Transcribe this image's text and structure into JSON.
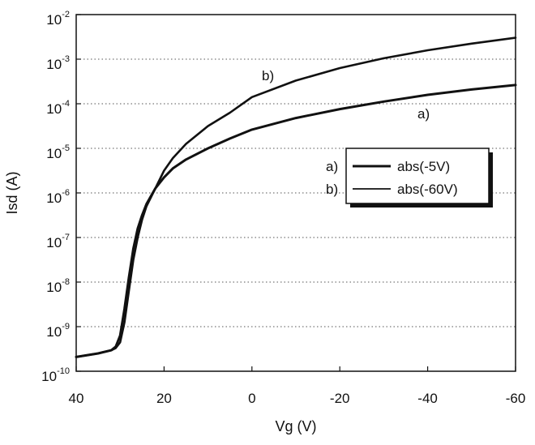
{
  "chart_data": {
    "type": "line",
    "xlabel": "Vg (V)",
    "ylabel": "Isd (A)",
    "xlim": [
      40,
      -60
    ],
    "ylim_exp": [
      -10,
      -2
    ],
    "y_scale": "log",
    "x_ticks": [
      "40",
      "20",
      "0",
      "-20",
      "-40",
      "-60"
    ],
    "x_tick_values": [
      40,
      20,
      0,
      -20,
      -40,
      -60
    ],
    "y_ticks": [
      {
        "base": "10",
        "exp": "-10"
      },
      {
        "base": "10",
        "exp": "-9"
      },
      {
        "base": "10",
        "exp": "-8"
      },
      {
        "base": "10",
        "exp": "-7"
      },
      {
        "base": "10",
        "exp": "-6"
      },
      {
        "base": "10",
        "exp": "-5"
      },
      {
        "base": "10",
        "exp": "-4"
      },
      {
        "base": "10",
        "exp": "-3"
      },
      {
        "base": "10",
        "exp": "-2"
      }
    ],
    "grid": "horizontal dotted",
    "legend_position": "right",
    "legend": [
      {
        "tag": "a)",
        "label": "abs(-5V)"
      },
      {
        "tag": "b)",
        "label": "abs(-60V)"
      }
    ],
    "annotations": [
      {
        "text": "b)",
        "series": 1
      },
      {
        "text": "a)",
        "series": 0
      }
    ],
    "series": [
      {
        "name": "abs(-5V)",
        "color": "#111111",
        "x": [
          40,
          35,
          32,
          31,
          30,
          29,
          28,
          27,
          26,
          25,
          24,
          22,
          20,
          18,
          15,
          10,
          5,
          0,
          -10,
          -20,
          -30,
          -40,
          -50,
          -60
        ],
        "log10_y": [
          -9.68,
          -9.6,
          -9.53,
          -9.45,
          -9.2,
          -8.6,
          -7.9,
          -7.25,
          -6.8,
          -6.5,
          -6.25,
          -5.9,
          -5.65,
          -5.45,
          -5.25,
          -5.0,
          -4.78,
          -4.58,
          -4.32,
          -4.12,
          -3.95,
          -3.8,
          -3.68,
          -3.58
        ]
      },
      {
        "name": "abs(-60V)",
        "color": "#111111",
        "x": [
          40,
          35,
          32,
          31,
          30,
          29,
          28,
          27,
          26,
          25,
          24,
          22,
          20,
          18,
          15,
          10,
          5,
          0,
          -10,
          -20,
          -30,
          -40,
          -50,
          -60
        ],
        "log10_y": [
          -9.68,
          -9.6,
          -9.53,
          -9.48,
          -9.35,
          -8.9,
          -8.2,
          -7.5,
          -7.0,
          -6.6,
          -6.3,
          -5.9,
          -5.5,
          -5.22,
          -4.9,
          -4.5,
          -4.2,
          -3.85,
          -3.48,
          -3.2,
          -2.98,
          -2.8,
          -2.65,
          -2.52
        ]
      }
    ]
  }
}
